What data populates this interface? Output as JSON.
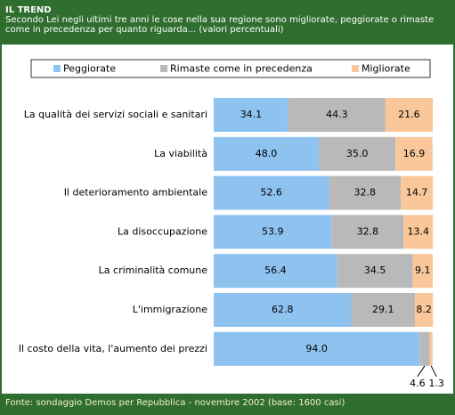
{
  "chart_data": {
    "type": "stacked_bar_horizontal",
    "title": "IL TREND",
    "subtitle": "Secondo Lei negli ultimi tre anni le cose nella sua regione sono migliorate, peggiorate o rimaste come in precedenza per quanto riguarda... (valori percentuali)",
    "source": "Fonte: sondaggio Demos per Repubblica - novembre 2002 (base: 1600 casi)",
    "legend": "top",
    "xlim": [
      0,
      100
    ],
    "categories": [
      "La qualità dei servizi sociali e sanitari",
      "La viabilità",
      "Il deterioramento ambientale",
      "La disoccupazione",
      "La criminalità comune",
      "L'immigrazione",
      "Il costo della vita, l'aumento dei prezzi"
    ],
    "series": [
      {
        "name": "Peggiorate",
        "color": "#8ec3f0",
        "values": [
          34.1,
          48.0,
          52.6,
          53.9,
          56.4,
          62.8,
          94.0
        ],
        "value_labels": [
          "34.1",
          "48.0",
          "52.6",
          "53.9",
          "56.4",
          "62.8",
          "94.0"
        ]
      },
      {
        "name": "Rimaste come in precedenza",
        "color": "#b9b9b9",
        "values": [
          44.3,
          35.0,
          32.8,
          32.8,
          34.5,
          29.1,
          4.6
        ],
        "value_labels": [
          "44.3",
          "35.0",
          "32.8",
          "32.8",
          "34.5",
          "29.1",
          "4.6"
        ]
      },
      {
        "name": "Migliorate",
        "color": "#f9c799",
        "values": [
          21.6,
          16.9,
          14.7,
          13.4,
          9.1,
          8.2,
          1.3
        ],
        "value_labels": [
          "21.6",
          "16.9",
          "14.7",
          "13.4",
          "9.1",
          "8.2",
          "1.3"
        ]
      }
    ]
  }
}
